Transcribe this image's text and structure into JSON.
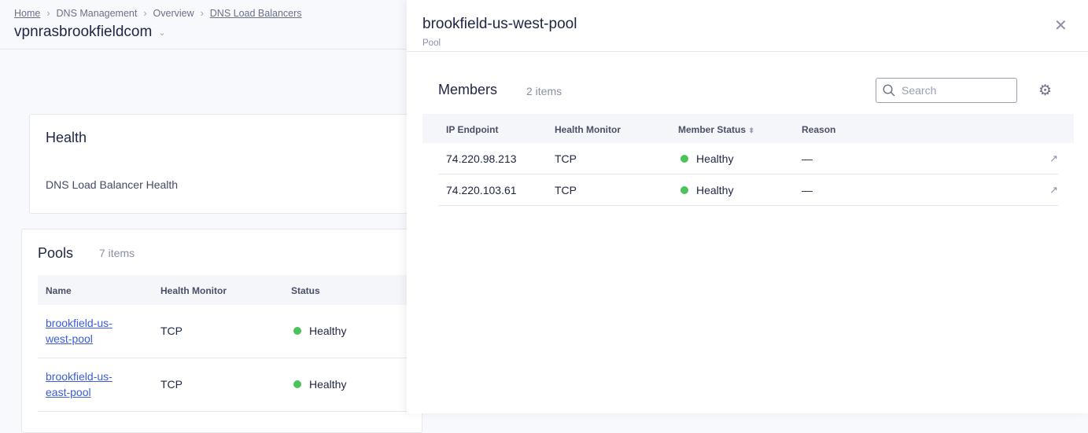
{
  "breadcrumb": [
    "Home",
    "DNS Management",
    "Overview",
    "DNS Load Balancers"
  ],
  "zone_title": "vpnrasbrookfieldcom",
  "health": {
    "title": "Health",
    "subtitle": "DNS Load Balancer Health"
  },
  "pools": {
    "title": "Pools",
    "count": "7 items",
    "columns": [
      "Name",
      "Health Monitor",
      "Status"
    ],
    "rows": [
      {
        "name": "brookfield-us-west-pool",
        "monitor": "TCP",
        "status": "Healthy"
      },
      {
        "name": "brookfield-us-east-pool",
        "monitor": "TCP",
        "status": "Healthy"
      }
    ]
  },
  "panel": {
    "title": "brookfield-us-west-pool",
    "subtitle": "Pool",
    "members_title": "Members",
    "count": "2 items",
    "search_placeholder": "Search",
    "columns": [
      "IP Endpoint",
      "Health Monitor",
      "Member Status",
      "Reason"
    ],
    "rows": [
      {
        "ip": "74.220.98.213",
        "monitor": "TCP",
        "status": "Healthy",
        "reason": "—"
      },
      {
        "ip": "74.220.103.61",
        "monitor": "TCP",
        "status": "Healthy",
        "reason": "—"
      }
    ]
  },
  "colors": {
    "healthy": "#4cc35a",
    "link": "#3b5bdb"
  }
}
